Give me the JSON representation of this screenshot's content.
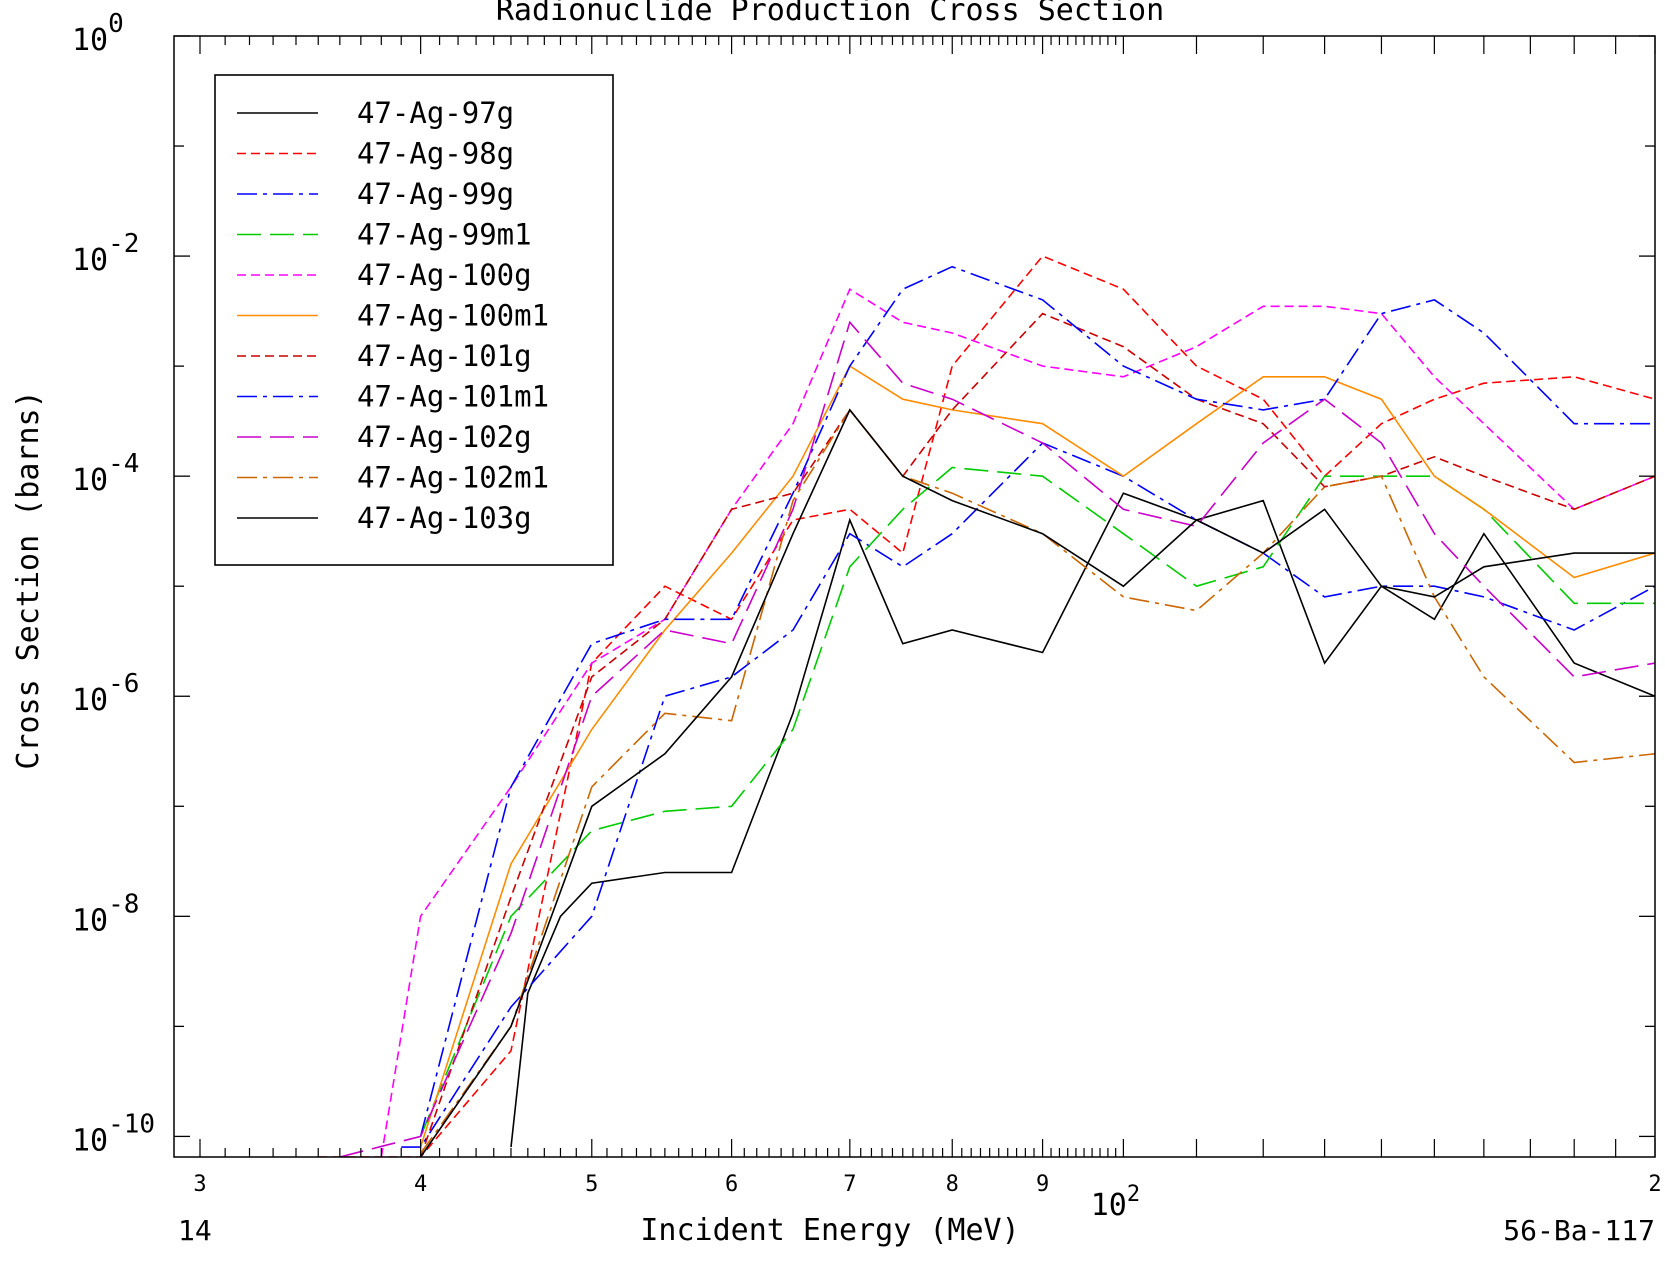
{
  "chart_data": {
    "type": "line",
    "title": "Radionuclide Production Cross Section",
    "xlabel": "Incident Energy (MeV)",
    "ylabel": "Cross Section (barns)",
    "x_scale": "log",
    "y_scale": "log",
    "xlim": [
      29,
      200
    ],
    "ylim": [
      6.5e-11,
      1
    ],
    "x_tick_labels": [
      {
        "value": 30,
        "label": "3"
      },
      {
        "value": 40,
        "label": "4"
      },
      {
        "value": 50,
        "label": "5"
      },
      {
        "value": 60,
        "label": "6"
      },
      {
        "value": 70,
        "label": "7"
      },
      {
        "value": 80,
        "label": "8"
      },
      {
        "value": 90,
        "label": "9"
      },
      {
        "value": 200,
        "label": "2"
      }
    ],
    "x_decade_label": {
      "value": 100,
      "base": "10",
      "exp": "2"
    },
    "y_tick_labels": [
      {
        "value": 1,
        "base": "10",
        "exp": "0"
      },
      {
        "value": 0.01,
        "base": "10",
        "exp": "-2"
      },
      {
        "value": 0.0001,
        "base": "10",
        "exp": "-4"
      },
      {
        "value": 1e-06,
        "base": "10",
        "exp": "-6"
      },
      {
        "value": 1e-08,
        "base": "10",
        "exp": "-8"
      },
      {
        "value": 1e-10,
        "base": "10",
        "exp": "-10"
      }
    ],
    "footer_left": "14",
    "footer_right": "56-Ba-117",
    "legend_position": "top-left",
    "series": [
      {
        "name": "47-Ag-97g",
        "color": "#000000",
        "dash": "solid",
        "points": [
          [
            45,
            8e-11
          ],
          [
            46,
            2e-09
          ],
          [
            48,
            1e-08
          ],
          [
            50,
            2e-08
          ],
          [
            55,
            2.5e-08
          ],
          [
            60,
            2.5e-08
          ],
          [
            65,
            7e-07
          ],
          [
            70,
            4e-05
          ],
          [
            75,
            3e-06
          ],
          [
            80,
            4e-06
          ],
          [
            90,
            2.5e-06
          ],
          [
            100,
            7e-05
          ],
          [
            110,
            4e-05
          ],
          [
            120,
            6e-05
          ],
          [
            130,
            2e-06
          ],
          [
            140,
            1e-05
          ],
          [
            150,
            5e-06
          ],
          [
            160,
            3e-05
          ],
          [
            180,
            2e-06
          ],
          [
            200,
            1e-06
          ]
        ]
      },
      {
        "name": "47-Ag-98g",
        "color": "#ff0000",
        "dash": "dashed",
        "points": [
          [
            35,
            6.5e-11
          ],
          [
            40,
            6.5e-11
          ],
          [
            45,
            6e-10
          ],
          [
            50,
            2e-06
          ],
          [
            55,
            1e-05
          ],
          [
            60,
            5e-06
          ],
          [
            65,
            4e-05
          ],
          [
            70,
            5e-05
          ],
          [
            75,
            2e-05
          ],
          [
            80,
            0.001
          ],
          [
            90,
            0.01
          ],
          [
            100,
            0.005
          ],
          [
            110,
            0.001
          ],
          [
            120,
            0.0005
          ],
          [
            130,
            0.0001
          ],
          [
            140,
            0.0003
          ],
          [
            150,
            0.0005
          ],
          [
            160,
            0.0007
          ],
          [
            180,
            0.0008
          ],
          [
            200,
            0.0005
          ]
        ]
      },
      {
        "name": "47-Ag-99g",
        "color": "#0000ff",
        "dash": "dashdot",
        "points": [
          [
            39,
            8e-11
          ],
          [
            40,
            8e-11
          ],
          [
            45,
            1.5e-09
          ],
          [
            50,
            1e-08
          ],
          [
            55,
            1e-06
          ],
          [
            60,
            1.5e-06
          ],
          [
            65,
            4e-06
          ],
          [
            70,
            3e-05
          ],
          [
            75,
            1.5e-05
          ],
          [
            80,
            3e-05
          ],
          [
            90,
            0.0002
          ],
          [
            100,
            0.0001
          ],
          [
            110,
            4e-05
          ],
          [
            120,
            2e-05
          ],
          [
            130,
            8e-06
          ],
          [
            140,
            1e-05
          ],
          [
            150,
            1e-05
          ],
          [
            160,
            8e-06
          ],
          [
            180,
            4e-06
          ],
          [
            200,
            1e-05
          ]
        ]
      },
      {
        "name": "47-Ag-99m1",
        "color": "#00cc00",
        "dash": "longdash",
        "points": [
          [
            40,
            1e-10
          ],
          [
            45,
            1e-08
          ],
          [
            50,
            6e-08
          ],
          [
            55,
            9e-08
          ],
          [
            60,
            1e-07
          ],
          [
            65,
            5e-07
          ],
          [
            70,
            1.5e-05
          ],
          [
            75,
            5e-05
          ],
          [
            80,
            0.00012
          ],
          [
            90,
            0.0001
          ],
          [
            100,
            3e-05
          ],
          [
            110,
            1e-05
          ],
          [
            120,
            1.5e-05
          ],
          [
            130,
            0.0001
          ],
          [
            140,
            0.0001
          ],
          [
            150,
            0.0001
          ],
          [
            160,
            5e-05
          ],
          [
            180,
            7e-06
          ],
          [
            200,
            7e-06
          ]
        ]
      },
      {
        "name": "47-Ag-100g",
        "color": "#ff00ff",
        "dash": "dashed",
        "points": [
          [
            38,
            6.5e-11
          ],
          [
            40,
            1e-08
          ],
          [
            45,
            1.5e-07
          ],
          [
            50,
            2e-06
          ],
          [
            55,
            5e-06
          ],
          [
            60,
            5e-05
          ],
          [
            65,
            0.0003
          ],
          [
            70,
            0.005
          ],
          [
            75,
            0.0025
          ],
          [
            80,
            0.002
          ],
          [
            90,
            0.001
          ],
          [
            100,
            0.0008
          ],
          [
            110,
            0.0015
          ],
          [
            120,
            0.0035
          ],
          [
            130,
            0.0035
          ],
          [
            140,
            0.003
          ],
          [
            150,
            0.0008
          ],
          [
            160,
            0.0003
          ],
          [
            180,
            5e-05
          ],
          [
            200,
            0.0001
          ]
        ]
      },
      {
        "name": "47-Ag-100m1",
        "color": "#ff8c00",
        "dash": "solid",
        "points": [
          [
            40,
            8e-11
          ],
          [
            45,
            3e-08
          ],
          [
            50,
            5e-07
          ],
          [
            55,
            4e-06
          ],
          [
            60,
            2e-05
          ],
          [
            65,
            0.0001
          ],
          [
            70,
            0.001
          ],
          [
            75,
            0.0005
          ],
          [
            80,
            0.0004
          ],
          [
            90,
            0.0003
          ],
          [
            100,
            0.0001
          ],
          [
            110,
            0.0003
          ],
          [
            120,
            0.0008
          ],
          [
            130,
            0.0008
          ],
          [
            140,
            0.0005
          ],
          [
            150,
            0.0001
          ],
          [
            160,
            5e-05
          ],
          [
            180,
            1.2e-05
          ],
          [
            200,
            2e-05
          ]
        ]
      },
      {
        "name": "47-Ag-101g",
        "color": "#cc0000",
        "dash": "dashed",
        "points": [
          [
            40,
            6.5e-11
          ],
          [
            45,
            1.5e-08
          ],
          [
            50,
            1.5e-06
          ],
          [
            55,
            5e-06
          ],
          [
            60,
            5e-05
          ],
          [
            65,
            7e-05
          ],
          [
            70,
            0.0004
          ],
          [
            75,
            0.0001
          ],
          [
            80,
            0.0004
          ],
          [
            90,
            0.003
          ],
          [
            100,
            0.0015
          ],
          [
            110,
            0.0005
          ],
          [
            120,
            0.0003
          ],
          [
            130,
            8e-05
          ],
          [
            140,
            0.0001
          ],
          [
            150,
            0.00015
          ],
          [
            160,
            0.0001
          ],
          [
            180,
            5e-05
          ],
          [
            200,
            0.0001
          ]
        ]
      },
      {
        "name": "47-Ag-101m1",
        "color": "#0000ff",
        "dash": "dashdot",
        "points": [
          [
            40,
            1e-10
          ],
          [
            45,
            1.5e-07
          ],
          [
            50,
            3e-06
          ],
          [
            55,
            5e-06
          ],
          [
            60,
            5e-06
          ],
          [
            65,
            7e-05
          ],
          [
            70,
            0.001
          ],
          [
            75,
            0.005
          ],
          [
            80,
            0.008
          ],
          [
            90,
            0.004
          ],
          [
            100,
            0.001
          ],
          [
            110,
            0.0005
          ],
          [
            120,
            0.0004
          ],
          [
            130,
            0.0005
          ],
          [
            140,
            0.003
          ],
          [
            150,
            0.004
          ],
          [
            160,
            0.002
          ],
          [
            180,
            0.0003
          ],
          [
            200,
            0.0003
          ]
        ]
      },
      {
        "name": "47-Ag-102g",
        "color": "#cc00cc",
        "dash": "longdash",
        "points": [
          [
            36,
            6.5e-11
          ],
          [
            40,
            1e-10
          ],
          [
            45,
            7e-09
          ],
          [
            50,
            1e-06
          ],
          [
            55,
            4e-06
          ],
          [
            60,
            3e-06
          ],
          [
            65,
            5e-05
          ],
          [
            70,
            0.0025
          ],
          [
            75,
            0.0007
          ],
          [
            80,
            0.0005
          ],
          [
            90,
            0.0002
          ],
          [
            100,
            5e-05
          ],
          [
            110,
            3.5e-05
          ],
          [
            120,
            0.0002
          ],
          [
            130,
            0.0005
          ],
          [
            140,
            0.0002
          ],
          [
            150,
            3e-05
          ],
          [
            160,
            1e-05
          ],
          [
            180,
            1.5e-06
          ],
          [
            200,
            2e-06
          ]
        ]
      },
      {
        "name": "47-Ag-102m1",
        "color": "#cc6600",
        "dash": "dashdot",
        "points": [
          [
            40,
            7e-11
          ],
          [
            45,
            1e-09
          ],
          [
            50,
            1.5e-07
          ],
          [
            55,
            7e-07
          ],
          [
            60,
            6e-07
          ],
          [
            65,
            6e-05
          ],
          [
            70,
            0.0004
          ],
          [
            75,
            0.0001
          ],
          [
            80,
            7e-05
          ],
          [
            90,
            3e-05
          ],
          [
            100,
            8e-06
          ],
          [
            110,
            6e-06
          ],
          [
            120,
            2e-05
          ],
          [
            130,
            8e-05
          ],
          [
            140,
            0.0001
          ],
          [
            150,
            8e-06
          ],
          [
            160,
            1.5e-06
          ],
          [
            180,
            2.5e-07
          ],
          [
            200,
            3e-07
          ]
        ]
      },
      {
        "name": "47-Ag-103g",
        "color": "#000000",
        "dash": "solid",
        "points": [
          [
            40,
            6.5e-11
          ],
          [
            45,
            1e-09
          ],
          [
            50,
            1e-07
          ],
          [
            55,
            3e-07
          ],
          [
            60,
            1.5e-06
          ],
          [
            65,
            3e-05
          ],
          [
            70,
            0.0004
          ],
          [
            75,
            0.0001
          ],
          [
            80,
            6e-05
          ],
          [
            90,
            3e-05
          ],
          [
            100,
            1e-05
          ],
          [
            110,
            4e-05
          ],
          [
            120,
            2e-05
          ],
          [
            130,
            5e-05
          ],
          [
            140,
            1e-05
          ],
          [
            150,
            8e-06
          ],
          [
            160,
            1.5e-05
          ],
          [
            180,
            2e-05
          ],
          [
            200,
            2e-05
          ]
        ]
      }
    ]
  }
}
